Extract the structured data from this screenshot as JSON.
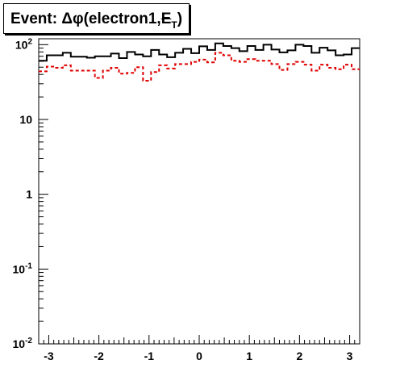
{
  "chart_data": {
    "type": "histogram",
    "title": {
      "prefix": "Event: ",
      "symbol": "Δφ",
      "body": "(electron1,",
      "met": "E",
      "met_sub": "T",
      "suffix": ")"
    },
    "x_range": [
      -3.2,
      3.2
    ],
    "y_scale": "log",
    "y_range": [
      0.01,
      120
    ],
    "x_ticks": [
      "-3",
      "-2",
      "-1",
      "0",
      "1",
      "2",
      "3"
    ],
    "x_tick_values": [
      -3,
      -2,
      -1,
      0,
      1,
      2,
      3
    ],
    "y_ticks": [
      {
        "value": 0.01,
        "base": "10",
        "exp": "-2"
      },
      {
        "value": 0.1,
        "base": "10",
        "exp": "-1"
      },
      {
        "value": 1,
        "base": "1",
        "exp": ""
      },
      {
        "value": 10,
        "base": "10",
        "exp": ""
      },
      {
        "value": 100,
        "base": "10",
        "exp": "2"
      }
    ],
    "bin_edges_start": -3.2,
    "bin_width": 0.16,
    "series": [
      {
        "style": "solid",
        "color": "#000000",
        "values": [
          61,
          72,
          72,
          78,
          69,
          69,
          67,
          70,
          70,
          76,
          66,
          80,
          74,
          70,
          85,
          74,
          68,
          78,
          88,
          77,
          95,
          85,
          104,
          96,
          90,
          82,
          96,
          85,
          100,
          86,
          79,
          84,
          100,
          96,
          78,
          91,
          84,
          72,
          74,
          90
        ]
      },
      {
        "style": "dashed",
        "color": "#e00000",
        "values": [
          44,
          51,
          49,
          53,
          45,
          45,
          45,
          36,
          45,
          49,
          41,
          42,
          50,
          33,
          43,
          53,
          48,
          55,
          55,
          59,
          63,
          58,
          78,
          72,
          61,
          59,
          64,
          61,
          61,
          55,
          46,
          55,
          59,
          54,
          45,
          54,
          49,
          47,
          54,
          47
        ]
      }
    ]
  }
}
